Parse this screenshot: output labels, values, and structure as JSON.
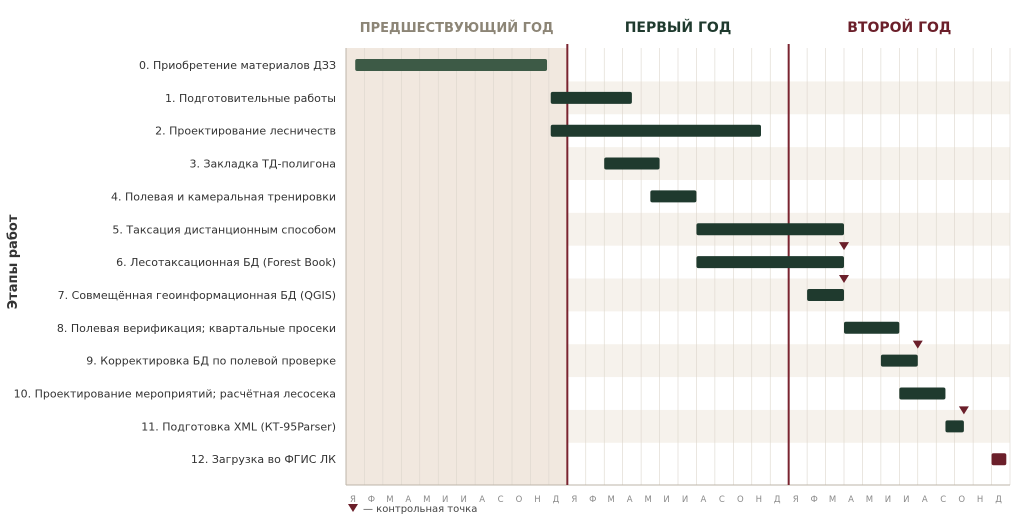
{
  "chart_data": {
    "type": "gantt",
    "ylabel": "Этапы работ",
    "periods": [
      {
        "label": "ПРЕДШЕСТВУЮЩИЙ ГОД",
        "color": "#8c8576"
      },
      {
        "label": "ПЕРВЫЙ ГОД",
        "color": "#1f3a2e"
      },
      {
        "label": "ВТОРОЙ ГОД",
        "color": "#6b1f2a"
      }
    ],
    "month_labels": [
      "Я",
      "Ф",
      "М",
      "А",
      "М",
      "И",
      "И",
      "А",
      "С",
      "О",
      "Н",
      "Д"
    ],
    "x_unit": "month index from start of preceding year (0 = January)",
    "xlim": [
      0,
      36
    ],
    "tasks": [
      {
        "label": "0. Приобретение материалов ДЗЗ",
        "start": 0.5,
        "end": 10.9,
        "color": "#3d5a46"
      },
      {
        "label": "1. Подготовительные работы",
        "start": 11.1,
        "end": 15.5,
        "color": "#1f3a2e"
      },
      {
        "label": "2. Проектирование лесничеств",
        "start": 11.1,
        "end": 22.5,
        "color": "#1f3a2e"
      },
      {
        "label": "3. Закладка ТД-полигона",
        "start": 14.0,
        "end": 17.0,
        "color": "#1f3a2e"
      },
      {
        "label": "4. Полевая и камеральная тренировки",
        "start": 16.5,
        "end": 19.0,
        "color": "#1f3a2e"
      },
      {
        "label": "5. Таксация дистанционным способом",
        "start": 19.0,
        "end": 27.0,
        "color": "#1f3a2e"
      },
      {
        "label": "6. Лесотаксационная БД (Forest Book)",
        "start": 19.0,
        "end": 27.0,
        "color": "#1f3a2e"
      },
      {
        "label": "7. Совмещённая геоинформационная БД (QGIS)",
        "start": 25.0,
        "end": 27.0,
        "color": "#1f3a2e"
      },
      {
        "label": "8. Полевая верификация; квартальные просеки",
        "start": 27.0,
        "end": 30.0,
        "color": "#1f3a2e"
      },
      {
        "label": "9. Корректировка БД по полевой проверке",
        "start": 29.0,
        "end": 31.0,
        "color": "#1f3a2e"
      },
      {
        "label": "10. Проектирование мероприятий; расчётная лесосека",
        "start": 30.0,
        "end": 32.5,
        "color": "#1f3a2e"
      },
      {
        "label": "11. Подготовка XML (КТ-95Parser)",
        "start": 32.5,
        "end": 33.5,
        "color": "#1f3a2e"
      },
      {
        "label": "12. Загрузка во ФГИС ЛК",
        "start": 35.0,
        "end": 35.8,
        "color": "#6b1f2a"
      }
    ],
    "milestones": [
      {
        "row": 6,
        "x": 27.0
      },
      {
        "row": 7,
        "x": 27.0
      },
      {
        "row": 9,
        "x": 31.0
      },
      {
        "row": 11,
        "x": 33.5
      }
    ],
    "legend": {
      "marker_text": "— контрольная точка",
      "placement": "bottom-left"
    },
    "colors": {
      "preceding_shade": "#f1e8df",
      "alt_row": "#f6f2ec",
      "year_divider": "#7a2430",
      "milestone": "#6b1f2a",
      "grid": "#dcd6cc"
    }
  }
}
